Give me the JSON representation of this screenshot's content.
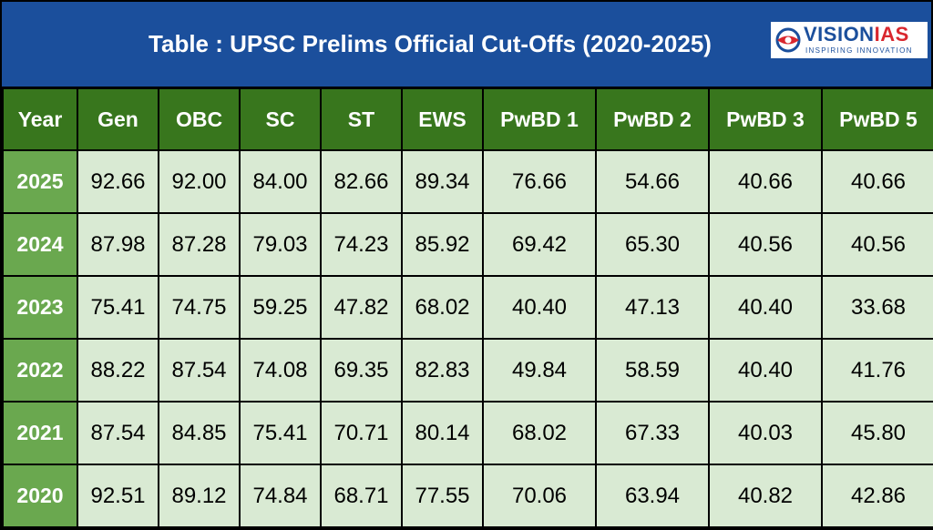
{
  "title": "Table : UPSC Prelims Official Cut-Offs (2020-2025)",
  "logo": {
    "brand_part1": "VISION",
    "brand_part2": "IAS",
    "tagline": "INSPIRING INNOVATION"
  },
  "colors": {
    "title_bar": "#1b4f9c",
    "header_green": "#38761d",
    "year_green": "#6aa84f",
    "cell_green": "#d9ead3",
    "logo_red": "#d9272e"
  },
  "table": {
    "headers": [
      "Year",
      "Gen",
      "OBC",
      "SC",
      "ST",
      "EWS",
      "PwBD 1",
      "PwBD 2",
      "PwBD 3",
      "PwBD 5"
    ],
    "rows": [
      [
        "2025",
        "92.66",
        "92.00",
        "84.00",
        "82.66",
        "89.34",
        "76.66",
        "54.66",
        "40.66",
        "40.66"
      ],
      [
        "2024",
        "87.98",
        "87.28",
        "79.03",
        "74.23",
        "85.92",
        "69.42",
        "65.30",
        "40.56",
        "40.56"
      ],
      [
        "2023",
        "75.41",
        "74.75",
        "59.25",
        "47.82",
        "68.02",
        "40.40",
        "47.13",
        "40.40",
        "33.68"
      ],
      [
        "2022",
        "88.22",
        "87.54",
        "74.08",
        "69.35",
        "82.83",
        "49.84",
        "58.59",
        "40.40",
        "41.76"
      ],
      [
        "2021",
        "87.54",
        "84.85",
        "75.41",
        "70.71",
        "80.14",
        "68.02",
        "67.33",
        "40.03",
        "45.80"
      ],
      [
        "2020",
        "92.51",
        "89.12",
        "74.84",
        "68.71",
        "77.55",
        "70.06",
        "63.94",
        "40.82",
        "42.86"
      ]
    ]
  }
}
